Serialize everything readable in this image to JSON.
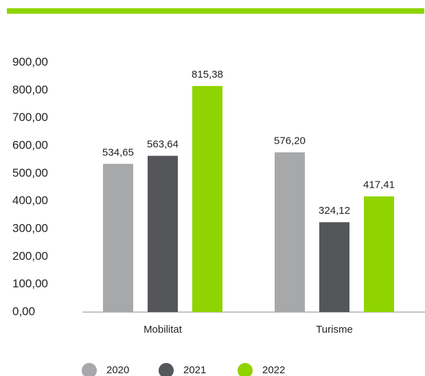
{
  "chart_data": {
    "type": "bar",
    "categories": [
      "Mobilitat",
      "Turisme"
    ],
    "series": [
      {
        "name": "2020",
        "color": "#a7a8aa",
        "values": [
          534.65,
          576.2
        ],
        "value_labels": [
          "534,65",
          "576,20"
        ]
      },
      {
        "name": "2021",
        "color": "#54565a",
        "values": [
          563.64,
          324.12
        ],
        "value_labels": [
          "563,64",
          "324,12"
        ]
      },
      {
        "name": "2022",
        "color": "#8fd400",
        "values": [
          815.38,
          417.41
        ],
        "value_labels": [
          "815,38",
          "417,41"
        ]
      }
    ],
    "ylim": [
      0,
      900
    ],
    "yticks": [
      {
        "value": 0,
        "label": "0,00"
      },
      {
        "value": 100,
        "label": "100,00"
      },
      {
        "value": 200,
        "label": "200,00"
      },
      {
        "value": 300,
        "label": "300,00"
      },
      {
        "value": 400,
        "label": "400,00"
      },
      {
        "value": 500,
        "label": "500,00"
      },
      {
        "value": 600,
        "label": "600,00"
      },
      {
        "value": 700,
        "label": "700,00"
      },
      {
        "value": 800,
        "label": "800,00"
      },
      {
        "value": 900,
        "label": "900,00"
      }
    ],
    "grid": false,
    "legend": "bottom"
  }
}
